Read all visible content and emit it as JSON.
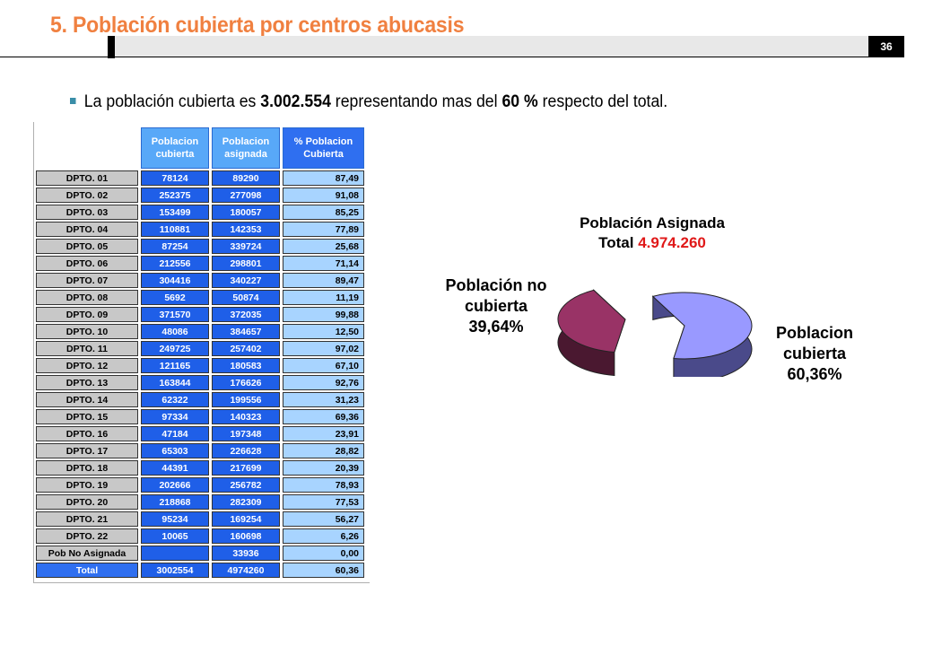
{
  "header": {
    "title": "5. Población cubierta  por centros abucasis",
    "page_number": "36"
  },
  "bullet": {
    "pre": "La población cubierta es ",
    "value": "3.002.554",
    "mid": " representando mas del ",
    "pct": "60 %",
    "post": " respecto del total."
  },
  "table": {
    "headers": [
      {
        "line1": "Poblacion",
        "line2": "cubierta"
      },
      {
        "line1": "Poblacion",
        "line2": "asignada"
      },
      {
        "line1": "% Poblacion",
        "line2": "Cubierta"
      }
    ],
    "rows": [
      {
        "label": "DPTO. 01",
        "cubierta": "78124",
        "asignada": "89290",
        "pct": "87,49"
      },
      {
        "label": "DPTO. 02",
        "cubierta": "252375",
        "asignada": "277098",
        "pct": "91,08"
      },
      {
        "label": "DPTO. 03",
        "cubierta": "153499",
        "asignada": "180057",
        "pct": "85,25"
      },
      {
        "label": "DPTO. 04",
        "cubierta": "110881",
        "asignada": "142353",
        "pct": "77,89"
      },
      {
        "label": "DPTO. 05",
        "cubierta": "87254",
        "asignada": "339724",
        "pct": "25,68"
      },
      {
        "label": "DPTO. 06",
        "cubierta": "212556",
        "asignada": "298801",
        "pct": "71,14"
      },
      {
        "label": "DPTO. 07",
        "cubierta": "304416",
        "asignada": "340227",
        "pct": "89,47"
      },
      {
        "label": "DPTO. 08",
        "cubierta": "5692",
        "asignada": "50874",
        "pct": "11,19"
      },
      {
        "label": "DPTO. 09",
        "cubierta": "371570",
        "asignada": "372035",
        "pct": "99,88"
      },
      {
        "label": "DPTO. 10",
        "cubierta": "48086",
        "asignada": "384657",
        "pct": "12,50"
      },
      {
        "label": "DPTO. 11",
        "cubierta": "249725",
        "asignada": "257402",
        "pct": "97,02"
      },
      {
        "label": "DPTO. 12",
        "cubierta": "121165",
        "asignada": "180583",
        "pct": "67,10"
      },
      {
        "label": "DPTO. 13",
        "cubierta": "163844",
        "asignada": "176626",
        "pct": "92,76"
      },
      {
        "label": "DPTO. 14",
        "cubierta": "62322",
        "asignada": "199556",
        "pct": "31,23"
      },
      {
        "label": "DPTO. 15",
        "cubierta": "97334",
        "asignada": "140323",
        "pct": "69,36"
      },
      {
        "label": "DPTO. 16",
        "cubierta": "47184",
        "asignada": "197348",
        "pct": "23,91"
      },
      {
        "label": "DPTO. 17",
        "cubierta": "65303",
        "asignada": "226628",
        "pct": "28,82"
      },
      {
        "label": "DPTO. 18",
        "cubierta": "44391",
        "asignada": "217699",
        "pct": "20,39"
      },
      {
        "label": "DPTO. 19",
        "cubierta": "202666",
        "asignada": "256782",
        "pct": "78,93"
      },
      {
        "label": "DPTO. 20",
        "cubierta": "218868",
        "asignada": "282309",
        "pct": "77,53"
      },
      {
        "label": "DPTO. 21",
        "cubierta": "95234",
        "asignada": "169254",
        "pct": "56,27"
      },
      {
        "label": "DPTO. 22",
        "cubierta": "10065",
        "asignada": "160698",
        "pct": "6,26"
      },
      {
        "label": "Pob No Asignada",
        "cubierta": "",
        "asignada": "33936",
        "pct": "0,00"
      },
      {
        "label": "Total",
        "cubierta": "3002554",
        "asignada": "4974260",
        "pct": "60,36"
      }
    ]
  },
  "pie": {
    "title_line1": "Población Asignada",
    "title_prefix": "Total ",
    "title_value": "4.974.260",
    "label_no_line1": "Población no",
    "label_no_line2": "cubierta",
    "label_no_value": "39,64%",
    "label_si_line1": "Poblacion",
    "label_si_line2": "cubierta",
    "label_si_value": "60,36%",
    "colors": {
      "cubierta": "#9999ff",
      "no_cubierta": "#993366"
    }
  },
  "chart_data": {
    "type": "pie",
    "title": "Población Asignada Total 4.974.260",
    "labels": [
      "Poblacion cubierta",
      "Población no cubierta"
    ],
    "values": [
      60.36,
      39.64
    ]
  }
}
